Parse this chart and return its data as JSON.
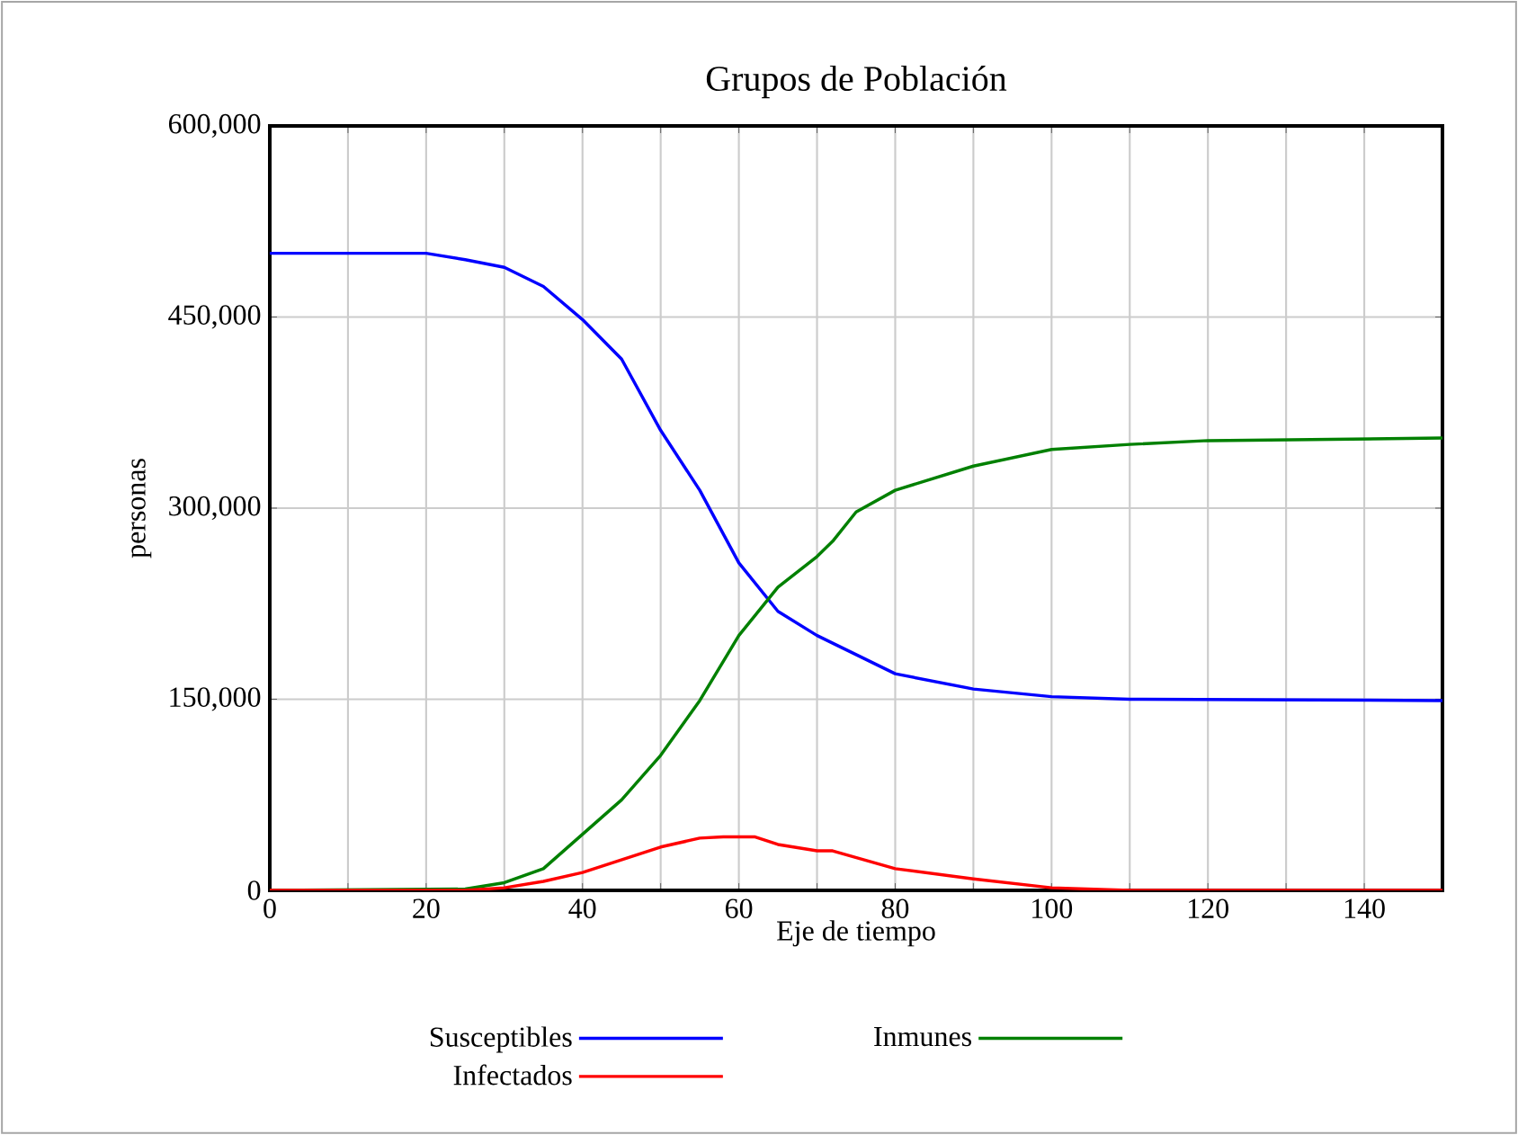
{
  "chart_data": {
    "type": "line",
    "title": "Grupos de Población",
    "xlabel": "Eje de tiempo",
    "ylabel": "personas",
    "xlim": [
      0,
      150
    ],
    "ylim": [
      0,
      600000
    ],
    "xticks": [
      0,
      {
        "value": 10,
        "label": null
      },
      20,
      {
        "value": 30,
        "label": null
      },
      40,
      {
        "value": 50,
        "label": null
      },
      60,
      {
        "value": 70,
        "label": null
      },
      80,
      {
        "value": 90,
        "label": null
      },
      100,
      {
        "value": 110,
        "label": null
      },
      120,
      {
        "value": 130,
        "label": null
      },
      140,
      {
        "value": 150,
        "label": null
      }
    ],
    "yticks": [
      0,
      {
        "value": 150000,
        "label": "150,000"
      },
      {
        "value": 300000,
        "label": "300,000"
      },
      {
        "value": 450000,
        "label": "450,000"
      },
      {
        "value": 600000,
        "label": "600,000"
      }
    ],
    "grid": true,
    "legend": "bottom",
    "marker": "none",
    "line_style": "solid",
    "series": [
      {
        "name": "Susceptibles",
        "color": "#0000ff",
        "x": [
          0,
          14,
          20,
          25,
          30,
          35,
          40,
          45,
          50,
          55,
          60,
          65,
          70,
          72,
          80,
          90,
          100,
          110,
          150
        ],
        "values": [
          500000,
          500000,
          500000,
          495000,
          489000,
          474000,
          448000,
          417000,
          361000,
          314000,
          257000,
          219000,
          200000,
          194000,
          170000,
          158000,
          152000,
          150000,
          149000
        ]
      },
      {
        "name": "Inmunes",
        "color": "#008000",
        "x": [
          0,
          25,
          30,
          35,
          40,
          45,
          50,
          55,
          60,
          65,
          70,
          72,
          75,
          80,
          90,
          100,
          110,
          120,
          150
        ],
        "values": [
          0,
          1000,
          6000,
          17000,
          44000,
          71000,
          106000,
          149000,
          200000,
          238000,
          262000,
          274000,
          297000,
          314000,
          333000,
          346000,
          350000,
          353000,
          355000
        ]
      },
      {
        "name": "Infectados",
        "color": "#ff0000",
        "x": [
          0,
          25,
          30,
          35,
          40,
          45,
          50,
          55,
          58,
          62,
          65,
          70,
          72,
          80,
          90,
          100,
          110,
          150
        ],
        "values": [
          0,
          0,
          2000,
          7000,
          14000,
          24000,
          34000,
          41000,
          42000,
          42000,
          36000,
          31000,
          31000,
          17000,
          9000,
          2000,
          0,
          0
        ]
      }
    ]
  }
}
